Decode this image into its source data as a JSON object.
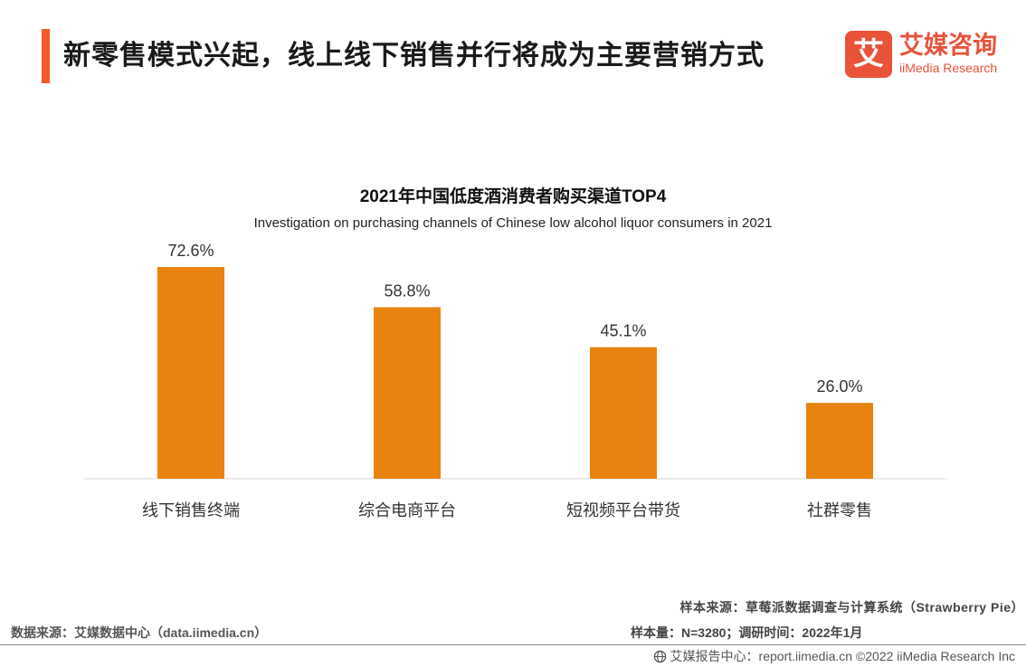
{
  "header": {
    "title": "新零售模式兴起，线上线下销售并行将成为主要营销方式",
    "accent_color": "#f05a28"
  },
  "logo": {
    "mark_char": "艾",
    "name_cn": "艾媒咨询",
    "name_en": "iiMedia Research",
    "color": "#e8533a"
  },
  "chart_data": {
    "type": "bar",
    "title": "2021年中国低度酒消费者购买渠道TOP4",
    "subtitle": "Investigation on purchasing channels of Chinese low alcohol liquor consumers in 2021",
    "categories": [
      "线下销售终端",
      "综合电商平台",
      "短视频平台带货",
      "社群零售"
    ],
    "values": [
      72.6,
      58.8,
      45.1,
      26.0
    ],
    "value_labels": [
      "72.6%",
      "58.8%",
      "45.1%",
      "26.0%"
    ],
    "unit": "%",
    "ylim": [
      0,
      75
    ],
    "grid": false,
    "bar_color": "#e8830f"
  },
  "footer": {
    "data_source": "数据来源：艾媒数据中心（data.iimedia.cn）",
    "sample_source": "样本来源：草莓派数据调查与计算系统（Strawberry Pie）",
    "sample_info": "样本量：N=3280；调研时间：2022年1月",
    "report_center": "艾媒报告中心：report.iimedia.cn   ©2022  iiMedia Research  Inc"
  }
}
